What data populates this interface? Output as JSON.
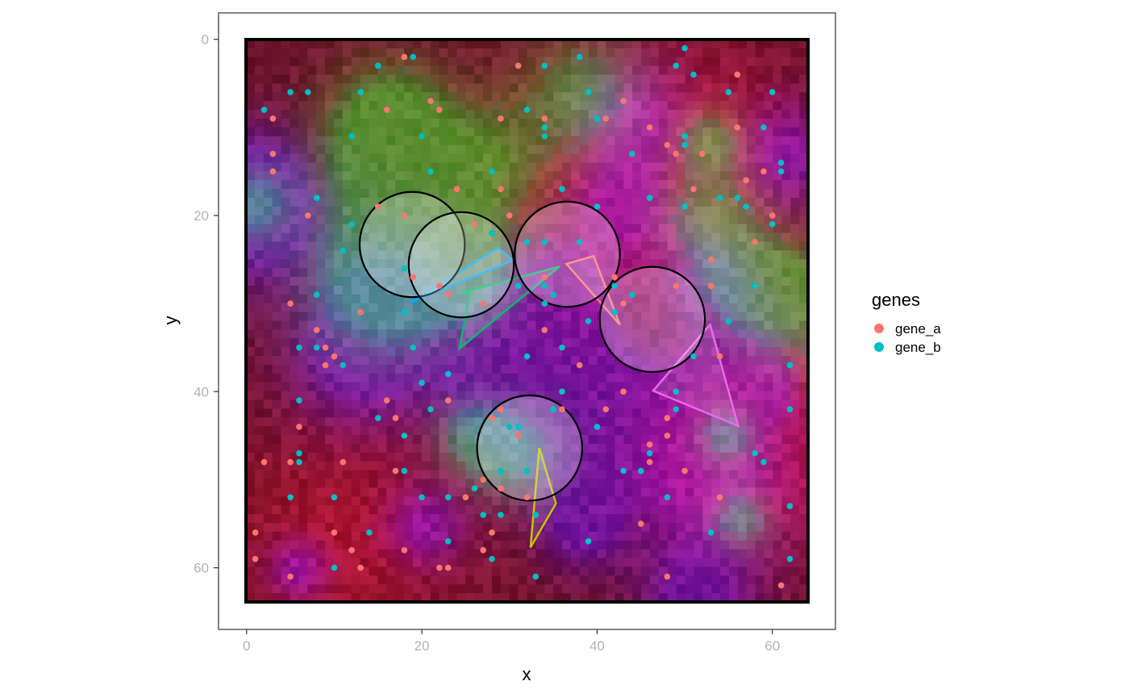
{
  "chart_data": {
    "type": "scatter",
    "xlabel": "x",
    "ylabel": "y",
    "xlim": [
      -3.2,
      67.2
    ],
    "ylim": [
      -3,
      67
    ],
    "y_reversed": true,
    "x_ticks": [
      0,
      20,
      40,
      60
    ],
    "y_ticks": [
      0,
      20,
      40,
      60
    ],
    "grid": false,
    "background_image": "multichannel RGB raster tiles 64x64",
    "legend": {
      "title": "genes",
      "placement": "right"
    },
    "series": [
      {
        "name": "gene_a",
        "color": "#F8766D",
        "points": [
          [
            18,
            2
          ],
          [
            31,
            3
          ],
          [
            56,
            4
          ],
          [
            21,
            7
          ],
          [
            43,
            7
          ],
          [
            16,
            8
          ],
          [
            22,
            8
          ],
          [
            3,
            9
          ],
          [
            29,
            9
          ],
          [
            34,
            9
          ],
          [
            41,
            9
          ],
          [
            46,
            10
          ],
          [
            56,
            10
          ],
          [
            48,
            12
          ],
          [
            49,
            13
          ],
          [
            52,
            13
          ],
          [
            3,
            13
          ],
          [
            3,
            15
          ],
          [
            59,
            15
          ],
          [
            57,
            16
          ],
          [
            51,
            17
          ],
          [
            24,
            17
          ],
          [
            29,
            17
          ],
          [
            15,
            19
          ],
          [
            7,
            20
          ],
          [
            18,
            20
          ],
          [
            30,
            20
          ],
          [
            60,
            20
          ],
          [
            26,
            21
          ],
          [
            58,
            23
          ],
          [
            18,
            26
          ],
          [
            49,
            28
          ],
          [
            42,
            27
          ],
          [
            34,
            27
          ],
          [
            53,
            25
          ],
          [
            19,
            27
          ],
          [
            22,
            28
          ],
          [
            23,
            29
          ],
          [
            27,
            30
          ],
          [
            5,
            30
          ],
          [
            13,
            31
          ],
          [
            8,
            33
          ],
          [
            34,
            33
          ],
          [
            53,
            28
          ],
          [
            43,
            30
          ],
          [
            9,
            35
          ],
          [
            10,
            36
          ],
          [
            54,
            36
          ],
          [
            38,
            37
          ],
          [
            9,
            37
          ],
          [
            23,
            41
          ],
          [
            17,
            43
          ],
          [
            16,
            41
          ],
          [
            48,
            43
          ],
          [
            36,
            42
          ],
          [
            29,
            42
          ],
          [
            28,
            43
          ],
          [
            31,
            45
          ],
          [
            41,
            42
          ],
          [
            43,
            40
          ],
          [
            46,
            46
          ],
          [
            46,
            48
          ],
          [
            48,
            45
          ],
          [
            6,
            44
          ],
          [
            2,
            48
          ],
          [
            5,
            48
          ],
          [
            11,
            48
          ],
          [
            17,
            49
          ],
          [
            27,
            50
          ],
          [
            29,
            51
          ],
          [
            50,
            49
          ],
          [
            25,
            52
          ],
          [
            54,
            52
          ],
          [
            32,
            52
          ],
          [
            45,
            55
          ],
          [
            28,
            56
          ],
          [
            1,
            56
          ],
          [
            10,
            56
          ],
          [
            18,
            58
          ],
          [
            12,
            58
          ],
          [
            1,
            59
          ],
          [
            13,
            60
          ],
          [
            22,
            60
          ],
          [
            23,
            60
          ],
          [
            5,
            61
          ],
          [
            48,
            61
          ],
          [
            61,
            62
          ],
          [
            27,
            58
          ]
        ]
      },
      {
        "name": "gene_b",
        "color": "#00BFC4",
        "points": [
          [
            19,
            2
          ],
          [
            15,
            3
          ],
          [
            34,
            3
          ],
          [
            38,
            2
          ],
          [
            50,
            1
          ],
          [
            51,
            4
          ],
          [
            49,
            3
          ],
          [
            5,
            6
          ],
          [
            7,
            6
          ],
          [
            13,
            6
          ],
          [
            39,
            6
          ],
          [
            55,
            6
          ],
          [
            60,
            6
          ],
          [
            2,
            8
          ],
          [
            32,
            8
          ],
          [
            34,
            10
          ],
          [
            34,
            11
          ],
          [
            40,
            9
          ],
          [
            12,
            11
          ],
          [
            20,
            11
          ],
          [
            50,
            11
          ],
          [
            50,
            12
          ],
          [
            59,
            10
          ],
          [
            44,
            13
          ],
          [
            61,
            14
          ],
          [
            61,
            15
          ],
          [
            21,
            15
          ],
          [
            28,
            15
          ],
          [
            36,
            17
          ],
          [
            8,
            18
          ],
          [
            46,
            18
          ],
          [
            50,
            19
          ],
          [
            54,
            18
          ],
          [
            56,
            18
          ],
          [
            57,
            19
          ],
          [
            60,
            21
          ],
          [
            12,
            21
          ],
          [
            11,
            24
          ],
          [
            28,
            22
          ],
          [
            32,
            23
          ],
          [
            34,
            23
          ],
          [
            38,
            23
          ],
          [
            40,
            19
          ],
          [
            18,
            26
          ],
          [
            31,
            28
          ],
          [
            34,
            28
          ],
          [
            35,
            29
          ],
          [
            42,
            28
          ],
          [
            44,
            29
          ],
          [
            39,
            32
          ],
          [
            42,
            31
          ],
          [
            34,
            30
          ],
          [
            18,
            31
          ],
          [
            8,
            29
          ],
          [
            58,
            28
          ],
          [
            55,
            32
          ],
          [
            6,
            35
          ],
          [
            8,
            35
          ],
          [
            19,
            35
          ],
          [
            36,
            35
          ],
          [
            11,
            37
          ],
          [
            32,
            36
          ],
          [
            51,
            36
          ],
          [
            62,
            37
          ],
          [
            23,
            38
          ],
          [
            20,
            39
          ],
          [
            36,
            40
          ],
          [
            49,
            40
          ],
          [
            6,
            41
          ],
          [
            15,
            43
          ],
          [
            21,
            42
          ],
          [
            35,
            42
          ],
          [
            49,
            42
          ],
          [
            62,
            42
          ],
          [
            30,
            44
          ],
          [
            31,
            44
          ],
          [
            40,
            44
          ],
          [
            18,
            45
          ],
          [
            6,
            47
          ],
          [
            6,
            48
          ],
          [
            46,
            47
          ],
          [
            58,
            47
          ],
          [
            59,
            48
          ],
          [
            29,
            49
          ],
          [
            32,
            49
          ],
          [
            18,
            49
          ],
          [
            43,
            49
          ],
          [
            45,
            49
          ],
          [
            26,
            51
          ],
          [
            5,
            52
          ],
          [
            10,
            52
          ],
          [
            20,
            52
          ],
          [
            23,
            52
          ],
          [
            48,
            52
          ],
          [
            62,
            53
          ],
          [
            27,
            54
          ],
          [
            29,
            54
          ],
          [
            33,
            54
          ],
          [
            14,
            56
          ],
          [
            53,
            56
          ],
          [
            23,
            57
          ],
          [
            39,
            57
          ],
          [
            28,
            59
          ],
          [
            62,
            59
          ],
          [
            10,
            60
          ],
          [
            33,
            61
          ]
        ]
      }
    ],
    "circles": [
      {
        "cx": 18.9,
        "cy": 23.3,
        "r": 6.0
      },
      {
        "cx": 24.5,
        "cy": 25.6,
        "r": 6.0
      },
      {
        "cx": 36.6,
        "cy": 24.4,
        "r": 6.0
      },
      {
        "cx": 46.3,
        "cy": 31.8,
        "r": 6.0
      },
      {
        "cx": 32.3,
        "cy": 46.4,
        "r": 6.0
      }
    ],
    "polygons": [
      {
        "color": "#00A9FF",
        "points": [
          [
            18.7,
            29.9
          ],
          [
            28.7,
            23.7
          ],
          [
            30.4,
            25.1
          ]
        ]
      },
      {
        "color": "#00BE67",
        "points": [
          [
            35.7,
            25.8
          ],
          [
            24.4,
            28.8
          ],
          [
            24.4,
            28.8
          ],
          [
            24.4,
            28.8
          ],
          [
            25.5,
            28.7
          ],
          [
            24.3,
            35.1
          ]
        ]
      },
      {
        "color": "#F8766D",
        "points": [
          [
            36.5,
            25.5
          ],
          [
            39.6,
            24.6
          ],
          [
            42.6,
            32.4
          ]
        ]
      },
      {
        "color": "#ED68ED",
        "points": [
          [
            46.4,
            39.9
          ],
          [
            52.9,
            32.4
          ],
          [
            56.1,
            43.9
          ]
        ]
      },
      {
        "color": "#C4C400",
        "points": [
          [
            33.4,
            46.4
          ],
          [
            35.3,
            52.7
          ],
          [
            32.4,
            57.7
          ]
        ]
      }
    ]
  }
}
